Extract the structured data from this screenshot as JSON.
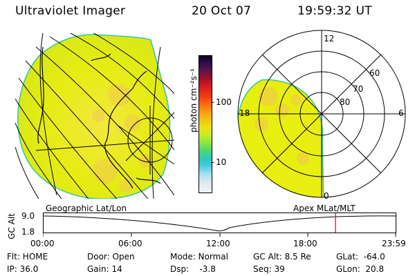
{
  "header": {
    "title": "Ultraviolet Imager",
    "date": "20 Oct 07",
    "time": "19:59:32 UT"
  },
  "colorbar": {
    "label": "photon cm⁻²s⁻¹",
    "tick_100": "100",
    "tick_10": "10"
  },
  "polar": {
    "mlt_12": "12",
    "mlt_18": "18",
    "mlt_6": "6",
    "mlt_0": "0",
    "lat_60": "60",
    "lat_70": "70",
    "lat_80": "80"
  },
  "panels": {
    "left_caption": "Geographic Lat/Lon",
    "right_caption": "Apex MLat/MLT"
  },
  "alt_plot": {
    "axis_label": "GC Alt",
    "y_top": "9.0",
    "y_bottom": "1.8",
    "x_ticks": [
      "00:00",
      "06:00",
      "12:00",
      "18:00",
      "23:59"
    ]
  },
  "info": {
    "flt": "Flt: HOME",
    "ip": "IP: 36.0",
    "door": "Door: Open",
    "gain": "Gain: 14",
    "mode": "Mode: Normal",
    "dsp": "Dsp:    -3.8",
    "gcalt": "GC Alt: 8.5 Re",
    "seq": "Seq: 39",
    "glat": "GLat:  -64.0",
    "glon": "GLon:  20.8"
  },
  "colors": {
    "aurora_fill": "#e8ee10",
    "aurora_bright": "#f1d23a",
    "edge": "#30c8a0",
    "marker": "#dd0000"
  }
}
